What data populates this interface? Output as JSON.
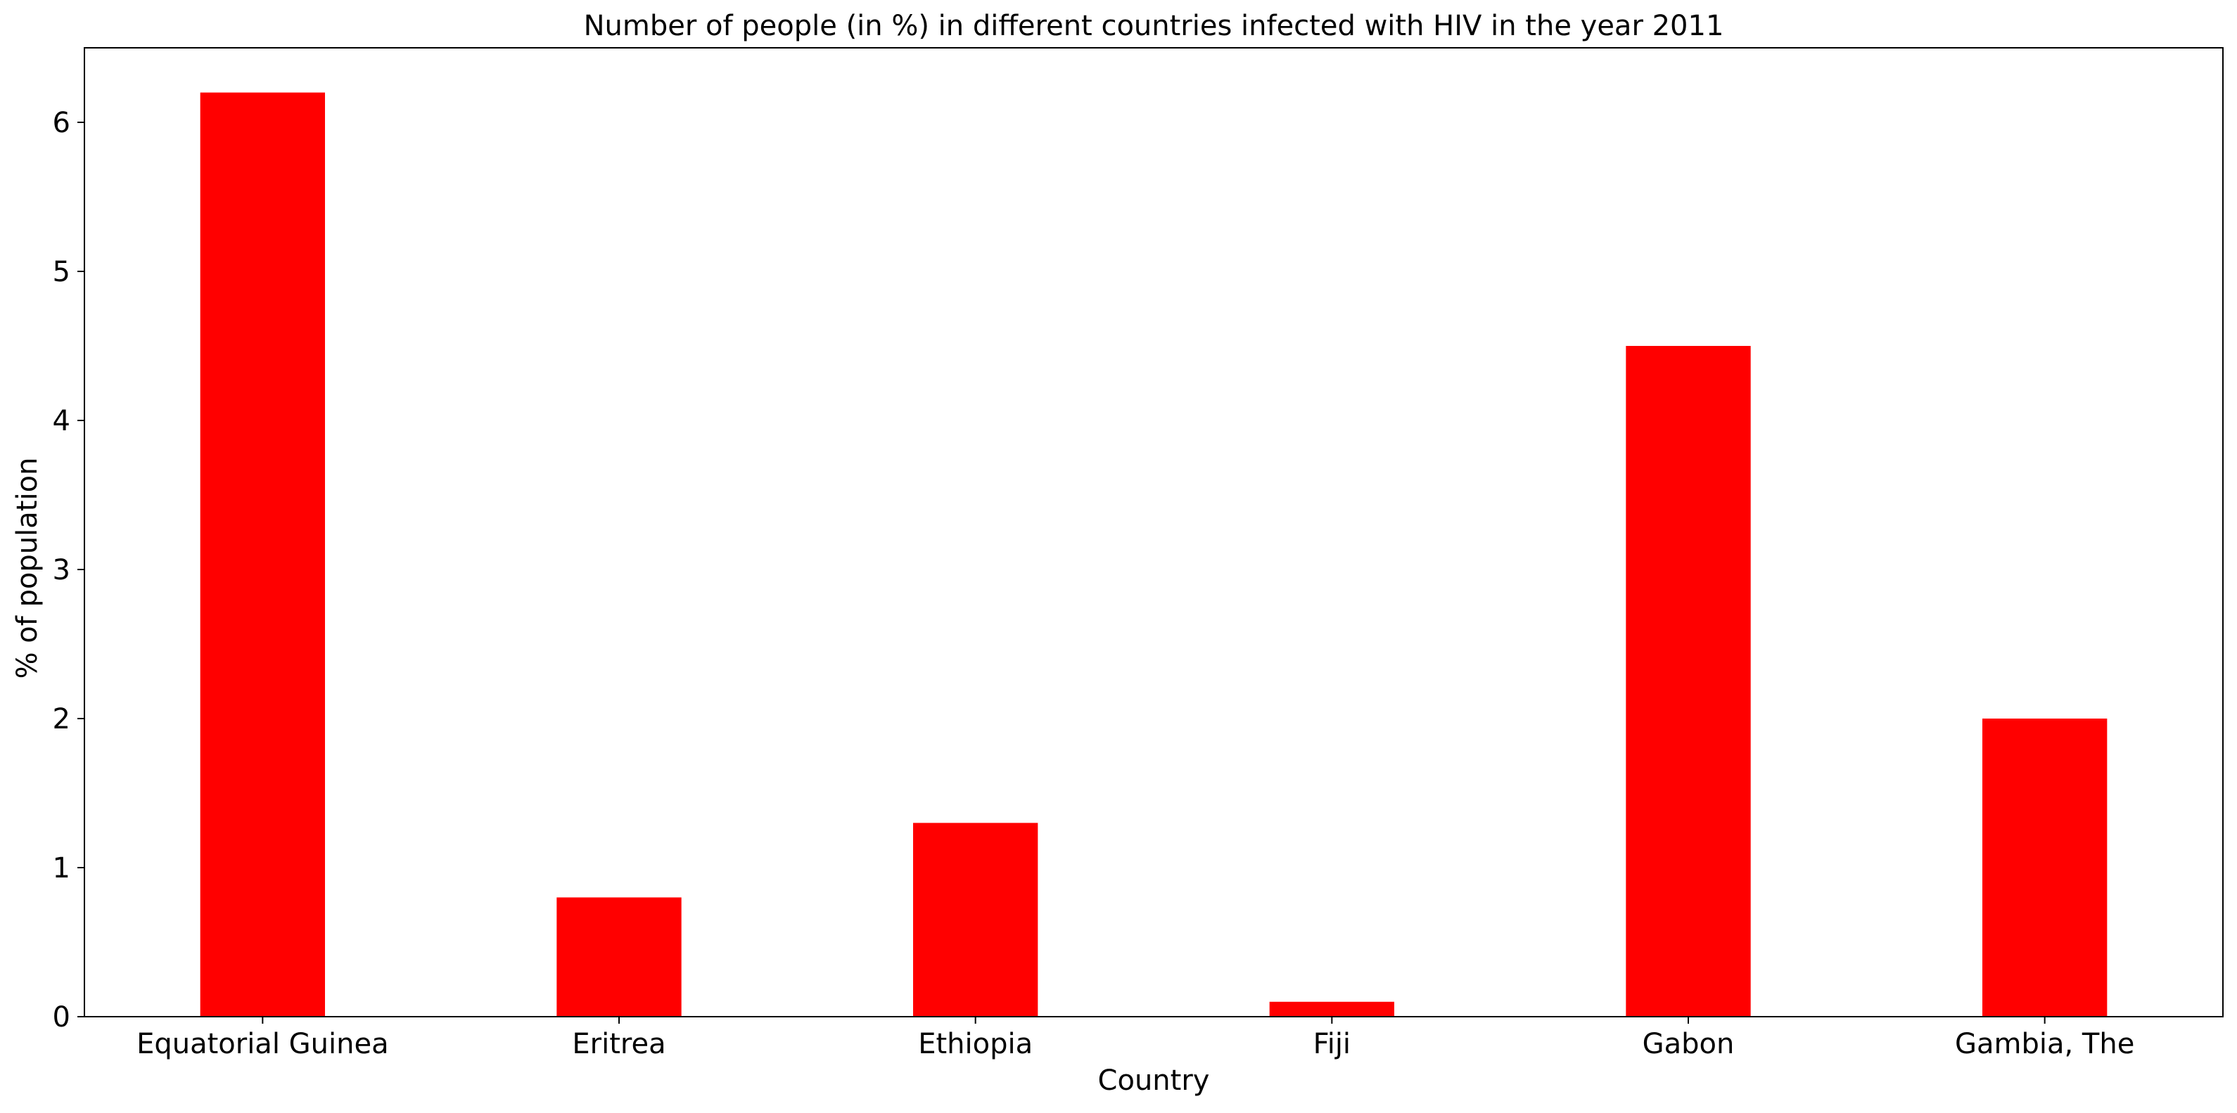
{
  "chart_data": {
    "type": "bar",
    "title": "Number of people (in %) in different countries infected with HIV in the year 2011",
    "xlabel": "Country",
    "ylabel": "% of population",
    "categories": [
      "Equatorial Guinea",
      "Eritrea",
      "Ethiopia",
      "Fiji",
      "Gabon",
      "Gambia, The"
    ],
    "values": [
      6.2,
      0.8,
      1.3,
      0.1,
      4.5,
      2.0
    ],
    "ylim": [
      0,
      6.5
    ],
    "yticks": [
      0,
      1,
      2,
      3,
      4,
      5,
      6
    ],
    "bar_color": "#ff0000",
    "grid": false,
    "legend": "none"
  }
}
